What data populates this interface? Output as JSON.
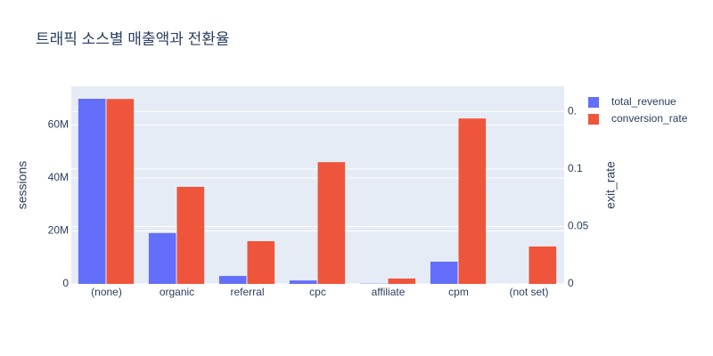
{
  "chart_data": {
    "type": "bar",
    "title": "트래픽 소스별 매출액과 전환율",
    "categories": [
      "(none)",
      "organic",
      "referral",
      "cpc",
      "affiliate",
      "cpm",
      "(not set)"
    ],
    "series": [
      {
        "name": "total_revenue",
        "color": "#636efa",
        "values": [
          69900000,
          19200000,
          3000000,
          1300000,
          100000,
          8400000,
          0
        ]
      },
      {
        "name": "conversion_rate",
        "color": "#ef553b",
        "axis": "y2",
        "values": [
          0.161,
          0.0845,
          0.0372,
          0.106,
          0.0047,
          0.144,
          0.0326
        ]
      }
    ],
    "ylabel": "sessions",
    "y2label": "exit_rate",
    "ylim": [
      0,
      74600000
    ],
    "yticks": [
      0,
      {
        "value": 20000000,
        "label": "20M"
      },
      {
        "value": 40000000,
        "label": "40M"
      },
      {
        "value": 60000000,
        "label": "60M"
      }
    ],
    "y2lim": [
      0,
      0.172
    ],
    "y2ticks": [
      0,
      0.05,
      0.1,
      {
        "value": 0.15,
        "label": "0."
      }
    ],
    "grid": true,
    "background": "#e5ecf6"
  }
}
